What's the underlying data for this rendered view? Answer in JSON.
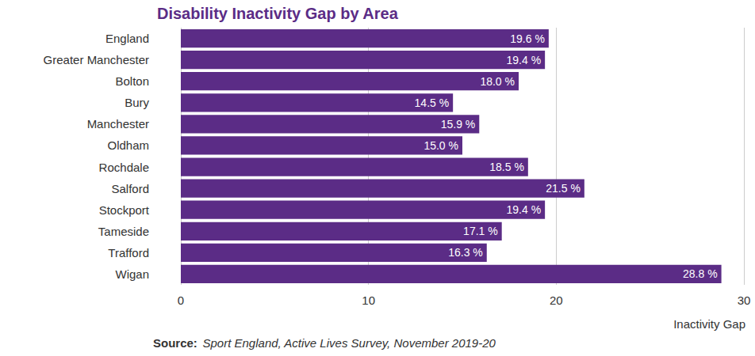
{
  "chart_data": {
    "type": "bar",
    "orientation": "horizontal",
    "title": "Disability Inactivity Gap by Area",
    "x_label": "Inactivity Gap",
    "annotations": [
      "Source:",
      "Sport England, Active Lives Survey, November 2019-20"
    ],
    "categories": [
      "England",
      "Greater Manchester",
      "Bolton",
      "Bury",
      "Manchester",
      "Oldham",
      "Rochdale",
      "Salford",
      "Stockport",
      "Tameside",
      "Trafford",
      "Wigan"
    ],
    "values": [
      19.6,
      19.4,
      18.0,
      14.5,
      15.9,
      15.0,
      18.5,
      21.5,
      19.4,
      17.1,
      16.3,
      28.8
    ],
    "value_labels": [
      "19.6 %",
      "19.4 %",
      "18.0 %",
      "14.5 %",
      "15.9 %",
      "15.0 %",
      "18.5 %",
      "21.5 %",
      "19.4 %",
      "17.1 %",
      "16.3 %",
      "28.8 %"
    ],
    "color": "#5b2c86",
    "xlim": [
      0,
      30
    ],
    "xticks": [
      0,
      10,
      20,
      30
    ],
    "grid": true,
    "data_labels": true
  }
}
